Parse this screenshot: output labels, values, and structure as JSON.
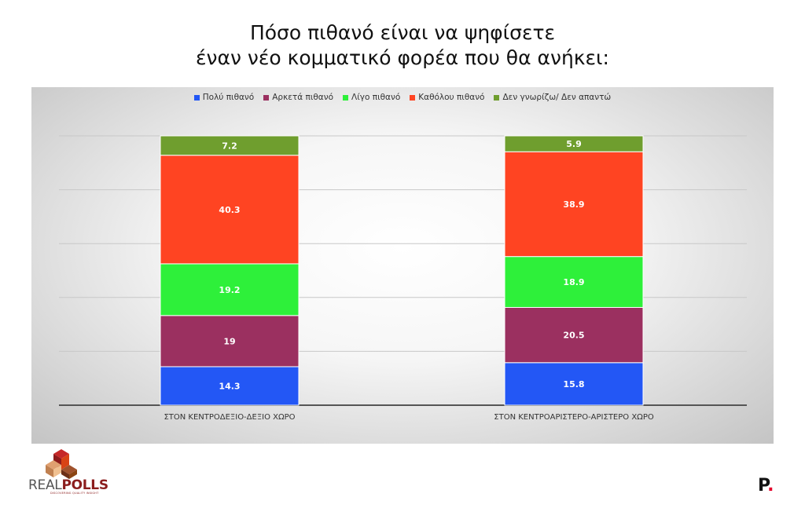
{
  "title_line1": "Πόσο πιθανό είναι να ψηφίσετε",
  "title_line2": "έναν νέο κομματικό φορέα που θα ανήκει:",
  "chart_data": {
    "type": "bar",
    "stacked": true,
    "categories": [
      "ΣΤΟΝ ΚΕΝΤΡΟΔΕΞΙΟ-ΔΕΞΙΟ ΧΩΡΟ",
      "ΣΤΟΝ ΚΕΝΤΡΟΑΡΙΣΤΕΡΟ-ΑΡΙΣΤΕΡΟ ΧΩΡΟ"
    ],
    "series": [
      {
        "name": "Πολύ πιθανό",
        "color": "#2357f5",
        "values": [
          14.3,
          15.8
        ],
        "labels": [
          "14.3",
          "15.8"
        ]
      },
      {
        "name": "Αρκετά πιθανό",
        "color": "#9b3060",
        "values": [
          19,
          20.5
        ],
        "labels": [
          "19",
          "20.5"
        ]
      },
      {
        "name": "Λίγο πιθανό",
        "color": "#2ef03a",
        "values": [
          19.2,
          18.9
        ],
        "labels": [
          "19.2",
          "18.9"
        ]
      },
      {
        "name": "Καθόλου πιθανό",
        "color": "#ff4422",
        "values": [
          40.3,
          38.9
        ],
        "labels": [
          "40.3",
          "38.9"
        ]
      },
      {
        "name": "Δεν γνωρίζω/ Δεν απαντώ",
        "color": "#6f9e2e",
        "values": [
          7.2,
          5.9
        ],
        "labels": [
          "7.2",
          "5.9"
        ]
      }
    ],
    "ylim": [
      0,
      100
    ],
    "grid": true,
    "legend_position": "top"
  },
  "logo_left": {
    "text_real": "REAL",
    "text_polls": "POLLS",
    "tagline": "DISCOVERING QUALITY INSIGHT"
  },
  "logo_right": {
    "letter": "P",
    "dot": "."
  }
}
